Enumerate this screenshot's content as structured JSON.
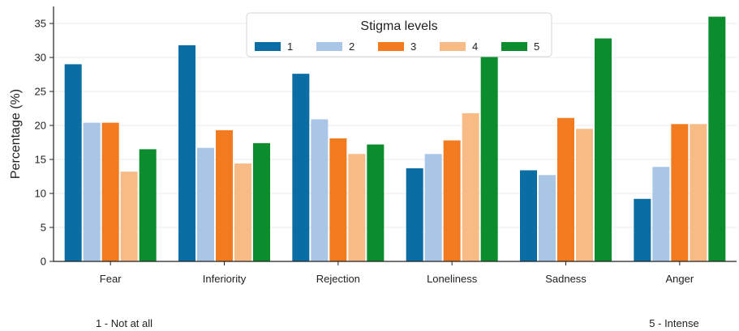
{
  "chart_data": {
    "type": "bar",
    "categories": [
      "Fear",
      "Inferiority",
      "Rejection",
      "Loneliness",
      "Sadness",
      "Anger"
    ],
    "series": [
      {
        "name": "1",
        "color": "#0a6da4",
        "values": [
          29.0,
          31.8,
          27.6,
          13.7,
          13.4,
          9.2
        ]
      },
      {
        "name": "2",
        "color": "#a9c6e6",
        "values": [
          20.4,
          16.7,
          20.9,
          15.8,
          12.7,
          13.9
        ]
      },
      {
        "name": "3",
        "color": "#f37b1f",
        "values": [
          20.4,
          19.3,
          18.1,
          17.8,
          21.1,
          20.2
        ]
      },
      {
        "name": "4",
        "color": "#f8bb86",
        "values": [
          13.2,
          14.4,
          15.8,
          21.8,
          19.5,
          20.2
        ]
      },
      {
        "name": "5",
        "color": "#0b8c2d",
        "values": [
          16.5,
          17.4,
          17.2,
          30.4,
          32.8,
          36.0
        ]
      }
    ],
    "title": "",
    "xlabel": "",
    "ylabel": "Percentage (%)",
    "ylim": [
      0,
      37.5
    ],
    "yticks": [
      0,
      5,
      10,
      15,
      20,
      25,
      30,
      35
    ],
    "grid": true,
    "legend": {
      "title": "Stigma levels",
      "placement": "top-center",
      "orientation": "horizontal"
    },
    "annotations": {
      "low": "1 - Not at all",
      "high": "5 - Intense"
    }
  }
}
